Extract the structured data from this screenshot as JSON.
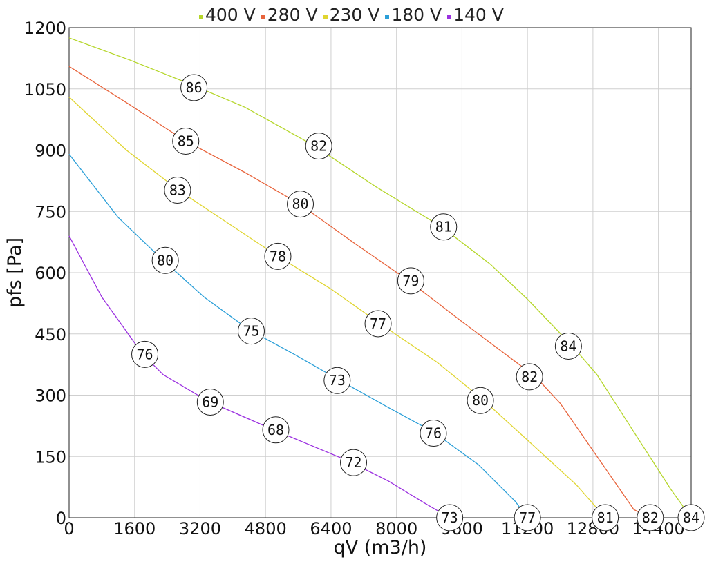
{
  "chart_data": {
    "type": "line",
    "xlabel": "qV (m3/h)",
    "ylabel": "pfs [Pa]",
    "xlim": [
      0,
      15200
    ],
    "ylim": [
      0,
      1200
    ],
    "x_ticks": [
      0,
      1600,
      3200,
      4800,
      6400,
      8000,
      9600,
      11200,
      12800,
      14400
    ],
    "y_ticks": [
      0,
      150,
      300,
      450,
      600,
      750,
      900,
      1050,
      1200
    ],
    "grid": true,
    "legend_position": "top-center",
    "series": [
      {
        "name": "400 V",
        "color": "#b5d62a",
        "points": [
          [
            0,
            1175
          ],
          [
            1500,
            1120
          ],
          [
            3000,
            1060
          ],
          [
            4300,
            1005
          ],
          [
            6000,
            910
          ],
          [
            7500,
            810
          ],
          [
            9100,
            712
          ],
          [
            10300,
            620
          ],
          [
            11200,
            535
          ],
          [
            12300,
            420
          ],
          [
            12900,
            350
          ],
          [
            13800,
            210
          ],
          [
            14700,
            70
          ],
          [
            15200,
            0
          ]
        ],
        "markers": [
          {
            "x": 3050,
            "y": 1053,
            "label": "86"
          },
          {
            "x": 6100,
            "y": 910,
            "label": "82"
          },
          {
            "x": 9150,
            "y": 712,
            "label": "81"
          },
          {
            "x": 12200,
            "y": 420,
            "label": "84"
          },
          {
            "x": 15200,
            "y": 0,
            "label": "84"
          }
        ]
      },
      {
        "name": "280 V",
        "color": "#e8643c",
        "points": [
          [
            0,
            1105
          ],
          [
            1500,
            1010
          ],
          [
            2800,
            925
          ],
          [
            4300,
            845
          ],
          [
            5600,
            770
          ],
          [
            7000,
            670
          ],
          [
            8300,
            580
          ],
          [
            9600,
            480
          ],
          [
            10800,
            390
          ],
          [
            11400,
            345
          ],
          [
            12000,
            280
          ],
          [
            12900,
            150
          ],
          [
            13800,
            20
          ],
          [
            14200,
            0
          ]
        ],
        "markers": [
          {
            "x": 2850,
            "y": 922,
            "label": "85"
          },
          {
            "x": 5650,
            "y": 768,
            "label": "80"
          },
          {
            "x": 8350,
            "y": 580,
            "label": "79"
          },
          {
            "x": 11250,
            "y": 345,
            "label": "82"
          },
          {
            "x": 14200,
            "y": 0,
            "label": "82"
          }
        ]
      },
      {
        "name": "230 V",
        "color": "#e0d530",
        "points": [
          [
            0,
            1030
          ],
          [
            1400,
            900
          ],
          [
            2700,
            800
          ],
          [
            3900,
            720
          ],
          [
            5100,
            640
          ],
          [
            6400,
            560
          ],
          [
            7600,
            475
          ],
          [
            9000,
            380
          ],
          [
            10100,
            290
          ],
          [
            11200,
            190
          ],
          [
            12400,
            80
          ],
          [
            13100,
            0
          ]
        ],
        "markers": [
          {
            "x": 2650,
            "y": 802,
            "label": "83"
          },
          {
            "x": 5100,
            "y": 640,
            "label": "78"
          },
          {
            "x": 7550,
            "y": 475,
            "label": "77"
          },
          {
            "x": 10050,
            "y": 287,
            "label": "80"
          },
          {
            "x": 13100,
            "y": 0,
            "label": "81"
          }
        ]
      },
      {
        "name": "180 V",
        "color": "#2b9fd8",
        "points": [
          [
            0,
            890
          ],
          [
            1200,
            735
          ],
          [
            2300,
            630
          ],
          [
            3300,
            540
          ],
          [
            4400,
            460
          ],
          [
            5500,
            400
          ],
          [
            6600,
            337
          ],
          [
            7800,
            270
          ],
          [
            8900,
            210
          ],
          [
            10000,
            130
          ],
          [
            10900,
            40
          ],
          [
            11200,
            0
          ]
        ],
        "markers": [
          {
            "x": 2350,
            "y": 630,
            "label": "80"
          },
          {
            "x": 4450,
            "y": 457,
            "label": "75"
          },
          {
            "x": 6550,
            "y": 336,
            "label": "73"
          },
          {
            "x": 8900,
            "y": 207,
            "label": "76"
          },
          {
            "x": 11200,
            "y": 0,
            "label": "77"
          }
        ]
      },
      {
        "name": "140 V",
        "color": "#9b30e0",
        "points": [
          [
            0,
            690
          ],
          [
            800,
            540
          ],
          [
            1800,
            400
          ],
          [
            2300,
            350
          ],
          [
            3400,
            285
          ],
          [
            5000,
            215
          ],
          [
            6800,
            140
          ],
          [
            7800,
            90
          ],
          [
            8700,
            35
          ],
          [
            9300,
            0
          ]
        ],
        "markers": [
          {
            "x": 1850,
            "y": 400,
            "label": "76"
          },
          {
            "x": 3450,
            "y": 283,
            "label": "69"
          },
          {
            "x": 5050,
            "y": 215,
            "label": "68"
          },
          {
            "x": 6950,
            "y": 135,
            "label": "72"
          },
          {
            "x": 9300,
            "y": 0,
            "label": "73"
          }
        ]
      }
    ]
  }
}
